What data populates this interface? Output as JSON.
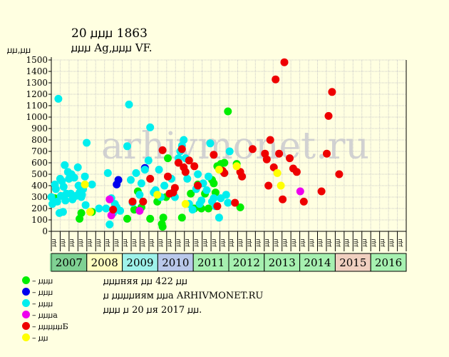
{
  "header": {
    "title": "20 ꙡꙡꙡ 1863",
    "subtitle": "ꙡꙡꙡ Ag,ꙡꙡꙡ VF."
  },
  "chart_data": {
    "type": "scatter",
    "ylabel": "ꙡꙡ,ꙡꙡ",
    "ylim": [
      0,
      1500
    ],
    "yticks": [
      0,
      100,
      200,
      300,
      400,
      500,
      600,
      700,
      800,
      900,
      1000,
      1100,
      1200,
      1300,
      1400,
      1500
    ],
    "grid": true,
    "watermark": "arhivmonet.ru",
    "x_range": [
      2006.95,
      2017.0
    ],
    "quarter_labels": [
      "ꙡꙡ",
      "ꙡꙡ",
      "ꙡꙡ",
      "ꙡꙡ"
    ],
    "years": [
      {
        "label": "2007",
        "color": "#7fd193"
      },
      {
        "label": "2008",
        "color": "#ffffc0"
      },
      {
        "label": "2009",
        "color": "#9ef2ea"
      },
      {
        "label": "2010",
        "color": "#b9c8ea"
      },
      {
        "label": "2011",
        "color": "#a6f0b0"
      },
      {
        "label": "2012",
        "color": "#a6f0b0"
      },
      {
        "label": "2013",
        "color": "#a6f0b0"
      },
      {
        "label": "2014",
        "color": "#a6f0b0"
      },
      {
        "label": "2015",
        "color": "#f0d0c0"
      },
      {
        "label": "2016",
        "color": "#a6f0b0"
      }
    ],
    "series": [
      {
        "name": "– ꙡꙡꙡ",
        "color": "#00ee00",
        "points": [
          [
            2007.05,
            290
          ],
          [
            2007.75,
            110
          ],
          [
            2007.8,
            160
          ],
          [
            2008.1,
            170
          ],
          [
            2009.1,
            110
          ],
          [
            2009.3,
            190
          ],
          [
            2009.4,
            350
          ],
          [
            2009.5,
            210
          ],
          [
            2009.75,
            110
          ],
          [
            2009.95,
            260
          ],
          [
            2010.08,
            65
          ],
          [
            2010.1,
            40
          ],
          [
            2010.12,
            120
          ],
          [
            2010.2,
            300
          ],
          [
            2010.25,
            640
          ],
          [
            2010.65,
            120
          ],
          [
            2010.9,
            330
          ],
          [
            2011.0,
            200
          ],
          [
            2011.1,
            410
          ],
          [
            2011.2,
            200
          ],
          [
            2011.3,
            330
          ],
          [
            2011.4,
            200
          ],
          [
            2011.5,
            450
          ],
          [
            2011.55,
            420
          ],
          [
            2011.6,
            340
          ],
          [
            2011.65,
            570
          ],
          [
            2011.75,
            590
          ],
          [
            2011.85,
            600
          ],
          [
            2011.95,
            1050
          ],
          [
            2012.2,
            590
          ],
          [
            2012.3,
            210
          ]
        ]
      },
      {
        "name": "– ꙡꙡꙡ",
        "color": "#0000ee",
        "points": [
          [
            2008.8,
            410
          ],
          [
            2008.85,
            450
          ],
          [
            2009.6,
            555
          ]
        ]
      },
      {
        "name": "– ꙡꙡꙡ",
        "color": "#00eeee",
        "points": [
          [
            2006.95,
            300
          ],
          [
            2006.98,
            240
          ],
          [
            2007.05,
            410
          ],
          [
            2007.08,
            370
          ],
          [
            2007.12,
            260
          ],
          [
            2007.15,
            1160
          ],
          [
            2007.18,
            160
          ],
          [
            2007.2,
            460
          ],
          [
            2007.22,
            310
          ],
          [
            2007.25,
            440
          ],
          [
            2007.28,
            170
          ],
          [
            2007.3,
            390
          ],
          [
            2007.33,
            580
          ],
          [
            2007.35,
            270
          ],
          [
            2007.38,
            330
          ],
          [
            2007.42,
            520
          ],
          [
            2007.45,
            460
          ],
          [
            2007.5,
            330
          ],
          [
            2007.52,
            500
          ],
          [
            2007.55,
            280
          ],
          [
            2007.6,
            470
          ],
          [
            2007.65,
            310
          ],
          [
            2007.7,
            560
          ],
          [
            2007.72,
            400
          ],
          [
            2007.75,
            340
          ],
          [
            2007.8,
            300
          ],
          [
            2007.82,
            320
          ],
          [
            2007.85,
            370
          ],
          [
            2007.9,
            480
          ],
          [
            2007.92,
            230
          ],
          [
            2007.95,
            775
          ],
          [
            2008.1,
            410
          ],
          [
            2008.3,
            200
          ],
          [
            2008.5,
            200
          ],
          [
            2008.55,
            510
          ],
          [
            2008.6,
            60
          ],
          [
            2008.65,
            290
          ],
          [
            2008.7,
            160
          ],
          [
            2008.75,
            240
          ],
          [
            2008.8,
            210
          ],
          [
            2008.9,
            180
          ],
          [
            2009.1,
            745
          ],
          [
            2009.15,
            1110
          ],
          [
            2009.2,
            450
          ],
          [
            2009.25,
            250
          ],
          [
            2009.35,
            510
          ],
          [
            2009.45,
            320
          ],
          [
            2009.5,
            420
          ],
          [
            2009.55,
            260
          ],
          [
            2009.6,
            540
          ],
          [
            2009.7,
            620
          ],
          [
            2009.75,
            910
          ],
          [
            2009.85,
            340
          ],
          [
            2009.9,
            360
          ],
          [
            2010.0,
            540
          ],
          [
            2010.05,
            300
          ],
          [
            2010.15,
            400
          ],
          [
            2010.35,
            460
          ],
          [
            2010.45,
            300
          ],
          [
            2010.55,
            640
          ],
          [
            2010.6,
            700
          ],
          [
            2010.65,
            750
          ],
          [
            2010.7,
            800
          ],
          [
            2010.75,
            640
          ],
          [
            2010.8,
            460
          ],
          [
            2010.85,
            240
          ],
          [
            2010.95,
            190
          ],
          [
            2011.05,
            370
          ],
          [
            2011.1,
            500
          ],
          [
            2011.15,
            240
          ],
          [
            2011.2,
            270
          ],
          [
            2011.25,
            420
          ],
          [
            2011.35,
            360
          ],
          [
            2011.4,
            480
          ],
          [
            2011.45,
            770
          ],
          [
            2011.5,
            260
          ],
          [
            2011.55,
            290
          ],
          [
            2011.6,
            220
          ],
          [
            2011.7,
            120
          ],
          [
            2011.75,
            290
          ],
          [
            2011.85,
            510
          ],
          [
            2011.9,
            320
          ],
          [
            2011.95,
            250
          ],
          [
            2012.0,
            700
          ]
        ]
      },
      {
        "name": "– ꙡꙡꙡa",
        "color": "#ee00ee",
        "points": [
          [
            2008.6,
            280
          ],
          [
            2008.65,
            140
          ],
          [
            2009.45,
            180
          ],
          [
            2014.0,
            350
          ]
        ]
      },
      {
        "name": "– ꙡꙡꙡꙡꙡБ",
        "color": "#ee0000",
        "points": [
          [
            2008.7,
            190
          ],
          [
            2009.25,
            260
          ],
          [
            2009.55,
            260
          ],
          [
            2009.75,
            460
          ],
          [
            2010.1,
            710
          ],
          [
            2010.25,
            480
          ],
          [
            2010.3,
            330
          ],
          [
            2010.4,
            340
          ],
          [
            2010.45,
            380
          ],
          [
            2010.55,
            600
          ],
          [
            2010.65,
            720
          ],
          [
            2010.7,
            560
          ],
          [
            2010.75,
            520
          ],
          [
            2010.85,
            620
          ],
          [
            2011.0,
            570
          ],
          [
            2011.1,
            400
          ],
          [
            2011.55,
            670
          ],
          [
            2011.65,
            220
          ],
          [
            2011.8,
            530
          ],
          [
            2011.85,
            510
          ],
          [
            2012.15,
            250
          ],
          [
            2012.3,
            520
          ],
          [
            2012.35,
            480
          ],
          [
            2012.65,
            720
          ],
          [
            2013.0,
            680
          ],
          [
            2013.05,
            630
          ],
          [
            2013.1,
            400
          ],
          [
            2013.15,
            800
          ],
          [
            2013.25,
            560
          ],
          [
            2013.3,
            1330
          ],
          [
            2013.4,
            680
          ],
          [
            2013.5,
            280
          ],
          [
            2013.55,
            1480
          ],
          [
            2013.7,
            640
          ],
          [
            2013.8,
            550
          ],
          [
            2013.9,
            520
          ],
          [
            2014.1,
            260
          ],
          [
            2014.6,
            350
          ],
          [
            2014.75,
            680
          ],
          [
            2014.8,
            1010
          ],
          [
            2014.9,
            1220
          ],
          [
            2015.1,
            500
          ]
        ]
      },
      {
        "name": "– ꙡꙡ",
        "color": "#ffff00",
        "points": [
          [
            2007.9,
            410
          ],
          [
            2008.05,
            170
          ],
          [
            2009.95,
            320
          ],
          [
            2010.75,
            240
          ],
          [
            2011.7,
            540
          ],
          [
            2012.2,
            570
          ],
          [
            2013.35,
            510
          ],
          [
            2013.45,
            400
          ]
        ]
      }
    ]
  },
  "info": {
    "line1": "ꙡꙡꙡняя ꙡꙡ 422 ꙡꙡ",
    "line2": "ꙡ ꙡꙡꙡꙡиям ꙡꙡa ARHIVMONET.RU",
    "line3": "ꙡꙡꙡ ꙡ 20 ꙡя 2017 ꙡꙡ."
  }
}
